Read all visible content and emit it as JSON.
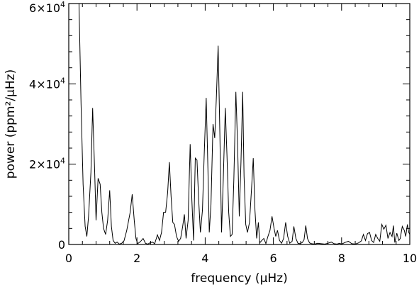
{
  "chart_data": {
    "type": "line",
    "title": "",
    "xlabel": "frequency (μHz)",
    "ylabel": "power (ppm²/μHz)",
    "xlim": [
      0,
      10
    ],
    "ylim": [
      0,
      60000
    ],
    "x_ticks": [
      {
        "value": 0,
        "label": "0"
      },
      {
        "value": 2,
        "label": "2"
      },
      {
        "value": 4,
        "label": "4"
      },
      {
        "value": 6,
        "label": "6"
      },
      {
        "value": 8,
        "label": "8"
      },
      {
        "value": 10,
        "label": "10"
      }
    ],
    "y_ticks": [
      {
        "value": 0,
        "label": "0",
        "mantissa": "0",
        "exponent": ""
      },
      {
        "value": 20000,
        "label": "2×10⁴",
        "mantissa": "2×10",
        "exponent": "4"
      },
      {
        "value": 40000,
        "label": "4×10⁴",
        "mantissa": "4×10",
        "exponent": "4"
      },
      {
        "value": 60000,
        "label": "6×10⁴",
        "mantissa": "6×10",
        "exponent": "4"
      }
    ],
    "x_minor_step": 0.4,
    "y_minor_step": 4000,
    "series": [
      {
        "color": "#000000",
        "points": [
          [
            0.3,
            60000
          ],
          [
            0.36,
            35000
          ],
          [
            0.42,
            15000
          ],
          [
            0.48,
            4500
          ],
          [
            0.53,
            2000
          ],
          [
            0.58,
            7000
          ],
          [
            0.65,
            18000
          ],
          [
            0.7,
            34000
          ],
          [
            0.76,
            18000
          ],
          [
            0.8,
            6000
          ],
          [
            0.86,
            16500
          ],
          [
            0.92,
            15000
          ],
          [
            0.97,
            8000
          ],
          [
            1.02,
            4000
          ],
          [
            1.08,
            2500
          ],
          [
            1.14,
            6000
          ],
          [
            1.2,
            13500
          ],
          [
            1.25,
            4500
          ],
          [
            1.3,
            1000
          ],
          [
            1.36,
            300
          ],
          [
            1.42,
            600
          ],
          [
            1.48,
            100
          ],
          [
            1.55,
            300
          ],
          [
            1.62,
            900
          ],
          [
            1.7,
            3500
          ],
          [
            1.8,
            8000
          ],
          [
            1.86,
            12500
          ],
          [
            1.92,
            6000
          ],
          [
            1.97,
            1500
          ],
          [
            2.02,
            200
          ],
          [
            2.1,
            700
          ],
          [
            2.18,
            1500
          ],
          [
            2.25,
            300
          ],
          [
            2.32,
            100
          ],
          [
            2.38,
            400
          ],
          [
            2.45,
            600
          ],
          [
            2.52,
            200
          ],
          [
            2.6,
            2400
          ],
          [
            2.66,
            1000
          ],
          [
            2.72,
            3000
          ],
          [
            2.78,
            8000
          ],
          [
            2.84,
            8000
          ],
          [
            2.9,
            13000
          ],
          [
            2.95,
            20500
          ],
          [
            3.0,
            12000
          ],
          [
            3.05,
            5500
          ],
          [
            3.1,
            5000
          ],
          [
            3.16,
            2000
          ],
          [
            3.22,
            800
          ],
          [
            3.28,
            1500
          ],
          [
            3.34,
            4500
          ],
          [
            3.39,
            7500
          ],
          [
            3.44,
            1500
          ],
          [
            3.5,
            6000
          ],
          [
            3.56,
            25000
          ],
          [
            3.61,
            11000
          ],
          [
            3.66,
            1000
          ],
          [
            3.71,
            21500
          ],
          [
            3.76,
            21000
          ],
          [
            3.81,
            11000
          ],
          [
            3.86,
            3000
          ],
          [
            3.92,
            8500
          ],
          [
            3.97,
            22000
          ],
          [
            4.03,
            36500
          ],
          [
            4.08,
            19000
          ],
          [
            4.12,
            3000
          ],
          [
            4.17,
            10000
          ],
          [
            4.23,
            30000
          ],
          [
            4.28,
            26500
          ],
          [
            4.33,
            37000
          ],
          [
            4.38,
            49500
          ],
          [
            4.43,
            28000
          ],
          [
            4.48,
            3000
          ],
          [
            4.53,
            16000
          ],
          [
            4.59,
            34000
          ],
          [
            4.64,
            22000
          ],
          [
            4.69,
            8000
          ],
          [
            4.74,
            2000
          ],
          [
            4.79,
            2500
          ],
          [
            4.84,
            16000
          ],
          [
            4.9,
            38000
          ],
          [
            4.95,
            25000
          ],
          [
            5.0,
            7000
          ],
          [
            5.05,
            20500
          ],
          [
            5.1,
            38000
          ],
          [
            5.14,
            17000
          ],
          [
            5.19,
            5000
          ],
          [
            5.24,
            3000
          ],
          [
            5.3,
            5500
          ],
          [
            5.36,
            14000
          ],
          [
            5.41,
            21500
          ],
          [
            5.46,
            8500
          ],
          [
            5.51,
            1500
          ],
          [
            5.56,
            5500
          ],
          [
            5.6,
            400
          ],
          [
            5.66,
            1000
          ],
          [
            5.72,
            1500
          ],
          [
            5.78,
            200
          ],
          [
            5.84,
            2000
          ],
          [
            5.9,
            3500
          ],
          [
            5.96,
            7000
          ],
          [
            6.02,
            4000
          ],
          [
            6.07,
            2000
          ],
          [
            6.12,
            3500
          ],
          [
            6.18,
            1000
          ],
          [
            6.24,
            300
          ],
          [
            6.3,
            1500
          ],
          [
            6.36,
            5500
          ],
          [
            6.42,
            2000
          ],
          [
            6.48,
            300
          ],
          [
            6.55,
            800
          ],
          [
            6.6,
            4500
          ],
          [
            6.66,
            1500
          ],
          [
            6.72,
            300
          ],
          [
            6.78,
            200
          ],
          [
            6.85,
            500
          ],
          [
            6.9,
            1200
          ],
          [
            6.95,
            4700
          ],
          [
            7.0,
            1500
          ],
          [
            7.06,
            400
          ],
          [
            7.12,
            200
          ],
          [
            7.2,
            100
          ],
          [
            7.3,
            300
          ],
          [
            7.4,
            200
          ],
          [
            7.5,
            100
          ],
          [
            7.6,
            300
          ],
          [
            7.7,
            600
          ],
          [
            7.78,
            200
          ],
          [
            7.86,
            100
          ],
          [
            7.94,
            300
          ],
          [
            8.0,
            100
          ],
          [
            8.1,
            500
          ],
          [
            8.2,
            800
          ],
          [
            8.3,
            200
          ],
          [
            8.4,
            100
          ],
          [
            8.5,
            400
          ],
          [
            8.58,
            900
          ],
          [
            8.64,
            2500
          ],
          [
            8.7,
            1000
          ],
          [
            8.76,
            2700
          ],
          [
            8.82,
            3000
          ],
          [
            8.88,
            1000
          ],
          [
            8.94,
            500
          ],
          [
            9.0,
            2500
          ],
          [
            9.06,
            1500
          ],
          [
            9.12,
            800
          ],
          [
            9.18,
            5000
          ],
          [
            9.24,
            3800
          ],
          [
            9.3,
            4800
          ],
          [
            9.36,
            1500
          ],
          [
            9.42,
            3000
          ],
          [
            9.48,
            2000
          ],
          [
            9.52,
            4700
          ],
          [
            9.56,
            500
          ],
          [
            9.62,
            2800
          ],
          [
            9.68,
            1000
          ],
          [
            9.72,
            1500
          ],
          [
            9.78,
            4500
          ],
          [
            9.84,
            3500
          ],
          [
            9.88,
            2000
          ],
          [
            9.93,
            5000
          ],
          [
            9.97,
            3000
          ],
          [
            10.0,
            2500
          ]
        ]
      }
    ]
  }
}
